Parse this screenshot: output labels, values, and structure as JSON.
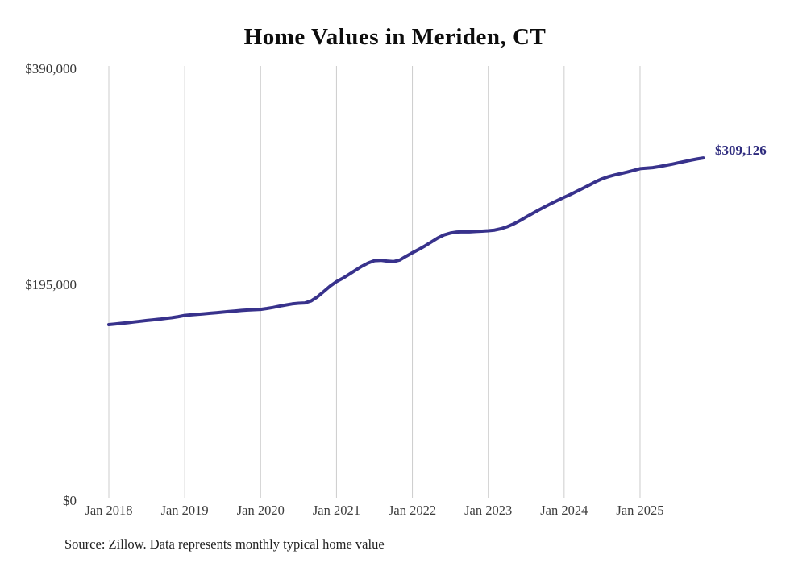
{
  "chart_data": {
    "type": "line",
    "title": "Home Values in Meriden, CT",
    "source": "Source: Zillow. Data represents monthly typical home value",
    "end_label": "$309,126",
    "final_value": 309126,
    "line_color": "#38328c",
    "end_label_color": "#2e2b7e",
    "gridline_color": "#cccccc",
    "axis_label_color": "#3d3d3d",
    "x_start_month": "Jan 2018",
    "x_end_month": "Nov 2025",
    "ylim": [
      0,
      390000
    ],
    "grid": "vertical-only",
    "legend": "none",
    "y_ticks": [
      {
        "label": "$390,000",
        "value": 390000
      },
      {
        "label": "$195,000",
        "value": 195000
      },
      {
        "label": "$0",
        "value": 0
      }
    ],
    "x_ticks": [
      {
        "label": "Jan 2018",
        "month_index": 0
      },
      {
        "label": "Jan 2019",
        "month_index": 12
      },
      {
        "label": "Jan 2020",
        "month_index": 24
      },
      {
        "label": "Jan 2021",
        "month_index": 36
      },
      {
        "label": "Jan 2022",
        "month_index": 48
      },
      {
        "label": "Jan 2023",
        "month_index": 60
      },
      {
        "label": "Jan 2024",
        "month_index": 72
      },
      {
        "label": "Jan 2025",
        "month_index": 84
      }
    ],
    "series": [
      {
        "name": "Monthly typical home value",
        "values": [
          158600,
          159200,
          159800,
          160400,
          161000,
          161700,
          162300,
          162900,
          163500,
          164200,
          164900,
          165800,
          166900,
          167400,
          167900,
          168400,
          168900,
          169400,
          169900,
          170400,
          170900,
          171400,
          171800,
          172100,
          172400,
          173200,
          174100,
          175300,
          176400,
          177300,
          177900,
          178200,
          180000,
          183800,
          188500,
          193500,
          197500,
          200500,
          204000,
          207800,
          211300,
          214300,
          216400,
          216700,
          216000,
          215500,
          217000,
          220300,
          223500,
          226500,
          229800,
          233300,
          236800,
          239600,
          241300,
          242200,
          242500,
          242400,
          242700,
          243000,
          243400,
          244000,
          245200,
          247000,
          249500,
          252500,
          255800,
          259000,
          262200,
          265200,
          268100,
          270900,
          273600,
          276200,
          279000,
          281900,
          284700,
          287800,
          290300,
          292300,
          293800,
          295100,
          296400,
          297900,
          299500,
          299900,
          300400,
          301300,
          302400,
          303500,
          304700,
          305900,
          307100,
          308200,
          309126
        ]
      }
    ]
  }
}
